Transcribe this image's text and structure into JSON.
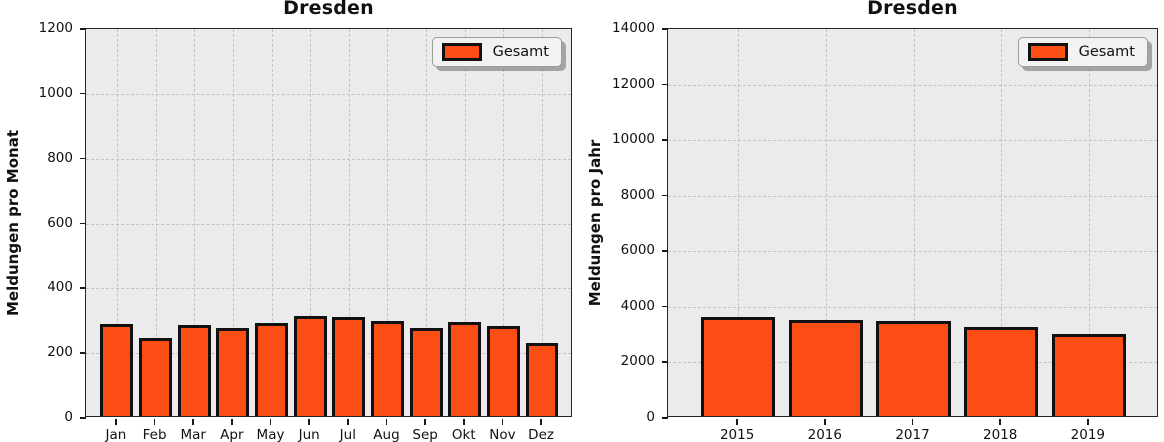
{
  "figure": {
    "background": "#ffffff",
    "plot_background": "#ebebeb",
    "grid_color": "#c3c3c3",
    "spine_color": "#262626",
    "bar_fill": "#FB4D14",
    "bar_edge": "#111111"
  },
  "chart_data": [
    {
      "type": "bar",
      "title": "Dresden",
      "xlabel": "",
      "ylabel": "Meldungen pro Monat",
      "categories": [
        "Jan",
        "Feb",
        "Mar",
        "Apr",
        "May",
        "Jun",
        "Jul",
        "Aug",
        "Sep",
        "Okt",
        "Nov",
        "Dez"
      ],
      "series": [
        {
          "name": "Gesamt",
          "values": [
            285,
            240,
            282,
            273,
            288,
            308,
            304,
            293,
            272,
            289,
            277,
            226
          ]
        }
      ],
      "ylim": [
        0,
        1200
      ],
      "yticks": [
        0,
        200,
        400,
        600,
        800,
        1000,
        1200
      ],
      "grid": true,
      "legend": {
        "position": "upper-right",
        "entries": [
          "Gesamt"
        ]
      },
      "bar_color": "#FB4D14",
      "bar_edge_color": "#111111"
    },
    {
      "type": "bar",
      "title": "Dresden",
      "xlabel": "",
      "ylabel": "Meldungen pro Jahr",
      "categories": [
        "2015",
        "2016",
        "2017",
        "2018",
        "2019"
      ],
      "series": [
        {
          "name": "Gesamt",
          "values": [
            3570,
            3440,
            3430,
            3210,
            2950
          ]
        }
      ],
      "ylim": [
        0,
        14000
      ],
      "yticks": [
        0,
        2000,
        4000,
        6000,
        8000,
        10000,
        12000,
        14000
      ],
      "grid": true,
      "legend": {
        "position": "upper-right",
        "entries": [
          "Gesamt"
        ]
      },
      "bar_color": "#FB4D14",
      "bar_edge_color": "#111111"
    }
  ]
}
